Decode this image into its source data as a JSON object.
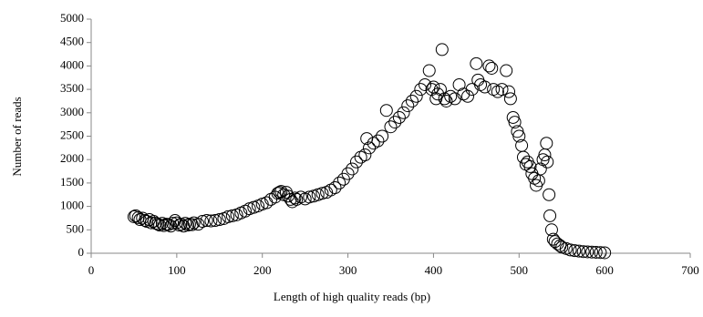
{
  "chart_data": {
    "type": "scatter",
    "xlabel": "Length of high quality reads (bp)",
    "ylabel": "Number of reads",
    "xlim": [
      0,
      700
    ],
    "xticks": [
      0,
      100,
      200,
      300,
      400,
      500,
      600,
      700
    ],
    "ylim": [
      0,
      5000
    ],
    "yticks": [
      0,
      500,
      1000,
      1500,
      2000,
      2500,
      3000,
      3500,
      4000,
      4500,
      5000
    ],
    "color": "#000000",
    "x": [
      50,
      52,
      55,
      57,
      60,
      63,
      65,
      68,
      70,
      73,
      75,
      78,
      80,
      83,
      85,
      88,
      90,
      93,
      95,
      98,
      100,
      103,
      105,
      108,
      110,
      113,
      115,
      118,
      120,
      125,
      130,
      135,
      140,
      145,
      150,
      155,
      160,
      165,
      170,
      175,
      180,
      185,
      190,
      195,
      200,
      205,
      210,
      215,
      218,
      220,
      222,
      225,
      228,
      230,
      233,
      235,
      238,
      240,
      245,
      250,
      255,
      260,
      265,
      270,
      275,
      280,
      285,
      290,
      295,
      300,
      305,
      310,
      315,
      320,
      322,
      325,
      330,
      335,
      340,
      345,
      350,
      355,
      360,
      365,
      370,
      375,
      380,
      385,
      390,
      395,
      398,
      400,
      403,
      405,
      408,
      410,
      413,
      415,
      420,
      425,
      430,
      435,
      440,
      445,
      450,
      452,
      455,
      460,
      465,
      468,
      470,
      475,
      480,
      485,
      488,
      490,
      493,
      495,
      498,
      500,
      503,
      505,
      508,
      510,
      513,
      515,
      518,
      520,
      523,
      525,
      528,
      530,
      532,
      533,
      535,
      536,
      538,
      540,
      542,
      545,
      548,
      550,
      555,
      560,
      565,
      570,
      575,
      580,
      585,
      590,
      595,
      600
    ],
    "values": [
      780,
      800,
      760,
      720,
      750,
      700,
      680,
      720,
      650,
      680,
      640,
      620,
      600,
      640,
      590,
      620,
      610,
      580,
      640,
      700,
      650,
      600,
      620,
      580,
      640,
      600,
      620,
      610,
      650,
      620,
      680,
      700,
      690,
      700,
      720,
      740,
      780,
      800,
      820,
      860,
      900,
      950,
      980,
      1010,
      1050,
      1080,
      1150,
      1200,
      1280,
      1300,
      1320,
      1250,
      1300,
      1220,
      1150,
      1100,
      1180,
      1150,
      1200,
      1160,
      1200,
      1220,
      1250,
      1280,
      1300,
      1350,
      1400,
      1500,
      1580,
      1700,
      1800,
      1950,
      2050,
      2100,
      2450,
      2250,
      2350,
      2400,
      2500,
      3050,
      2700,
      2800,
      2900,
      3000,
      3150,
      3250,
      3350,
      3500,
      3600,
      3900,
      3500,
      3550,
      3300,
      3400,
      3500,
      4350,
      3300,
      3250,
      3350,
      3300,
      3600,
      3400,
      3350,
      3500,
      4050,
      3700,
      3600,
      3550,
      4000,
      3950,
      3500,
      3450,
      3500,
      3900,
      3450,
      3300,
      2900,
      2800,
      2600,
      2500,
      2300,
      2050,
      1900,
      1950,
      1850,
      1700,
      1600,
      1450,
      1550,
      1800,
      2000,
      2100,
      2350,
      1950,
      1250,
      800,
      500,
      300,
      250,
      200,
      160,
      130,
      100,
      70,
      55,
      45,
      35,
      30,
      25,
      20,
      15,
      10
    ]
  }
}
